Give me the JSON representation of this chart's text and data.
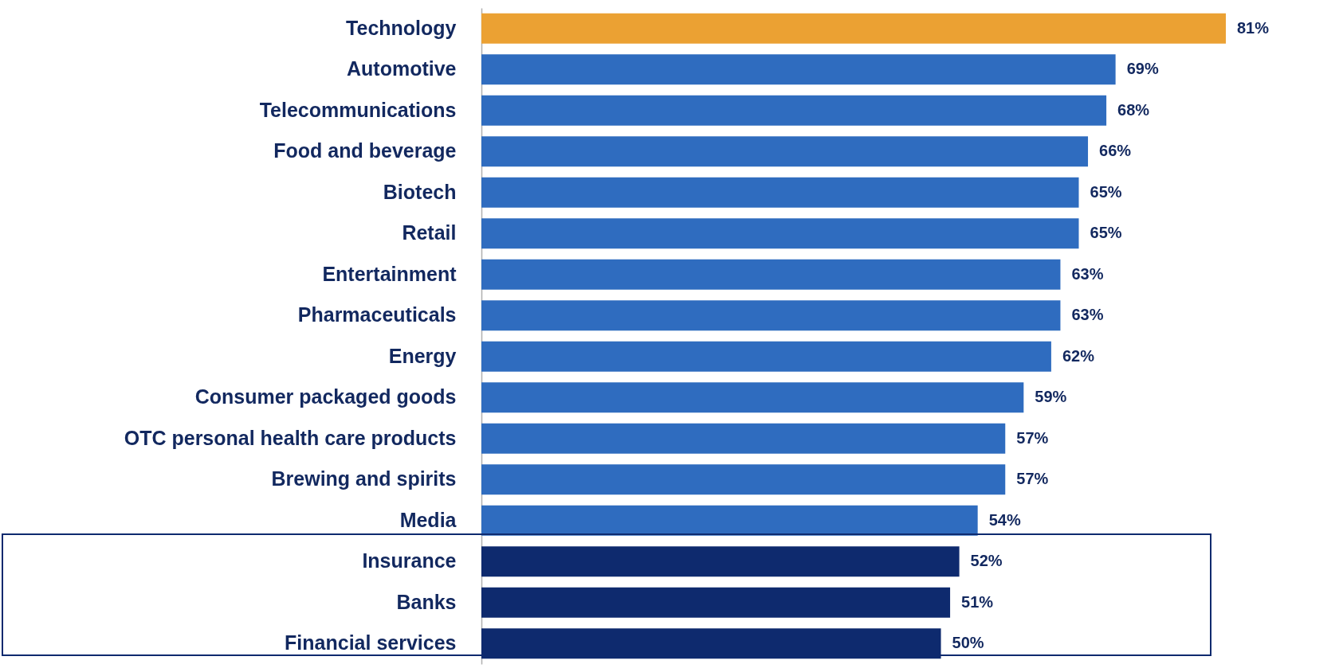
{
  "chart_data": {
    "type": "bar",
    "orientation": "horizontal",
    "categories": [
      "Technology",
      "Automotive",
      "Telecommunications",
      "Food and beverage",
      "Biotech",
      "Retail",
      "Entertainment",
      "Pharmaceuticals",
      "Energy",
      "Consumer packaged goods",
      "OTC personal health care products",
      "Brewing and spirits",
      "Media",
      "Insurance",
      "Banks",
      "Financial services"
    ],
    "values": [
      81,
      69,
      68,
      66,
      65,
      65,
      63,
      63,
      62,
      59,
      57,
      57,
      54,
      52,
      51,
      50
    ],
    "value_labels": [
      "81%",
      "69%",
      "68%",
      "66%",
      "65%",
      "65%",
      "63%",
      "63%",
      "62%",
      "59%",
      "57%",
      "57%",
      "54%",
      "52%",
      "51%",
      "50%"
    ],
    "colors": [
      "#eba133",
      "#2f6cbf",
      "#2f6cbf",
      "#2f6cbf",
      "#2f6cbf",
      "#2f6cbf",
      "#2f6cbf",
      "#2f6cbf",
      "#2f6cbf",
      "#2f6cbf",
      "#2f6cbf",
      "#2f6cbf",
      "#2f6cbf",
      "#0e2a6e",
      "#0e2a6e",
      "#0e2a6e"
    ],
    "tick_labels": "y"
  }
}
